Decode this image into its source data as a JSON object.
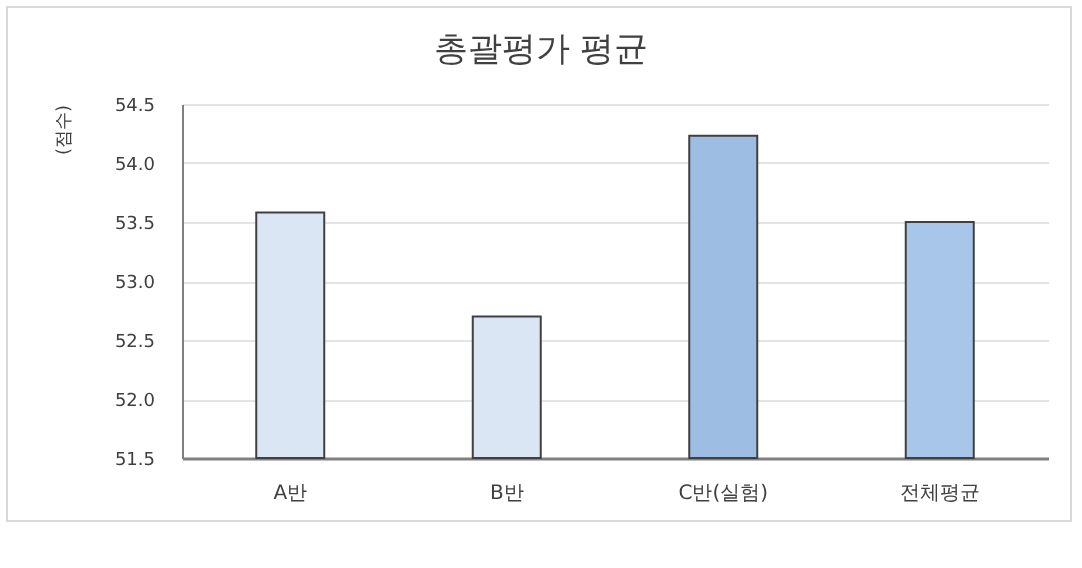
{
  "chart_data": {
    "type": "bar",
    "title": "총괄평가 평균",
    "ylabel": "(점수)",
    "categories": [
      "A반",
      "B반",
      "C반(실험)",
      "전체평균"
    ],
    "values": [
      53.58,
      52.7,
      54.23,
      53.5
    ],
    "colors": [
      "#dae6f3",
      "#dae6f3",
      "#9dbde3",
      "#a8c5ea"
    ],
    "ylim": [
      51.5,
      54.5
    ],
    "yticks": [
      51.5,
      {
        "value": 52,
        "label": "52.0"
      },
      52.5,
      {
        "value": 53,
        "label": "53.0"
      },
      53.5,
      {
        "value": 54,
        "label": "54.0"
      },
      54.5
    ],
    "grid": "y"
  }
}
